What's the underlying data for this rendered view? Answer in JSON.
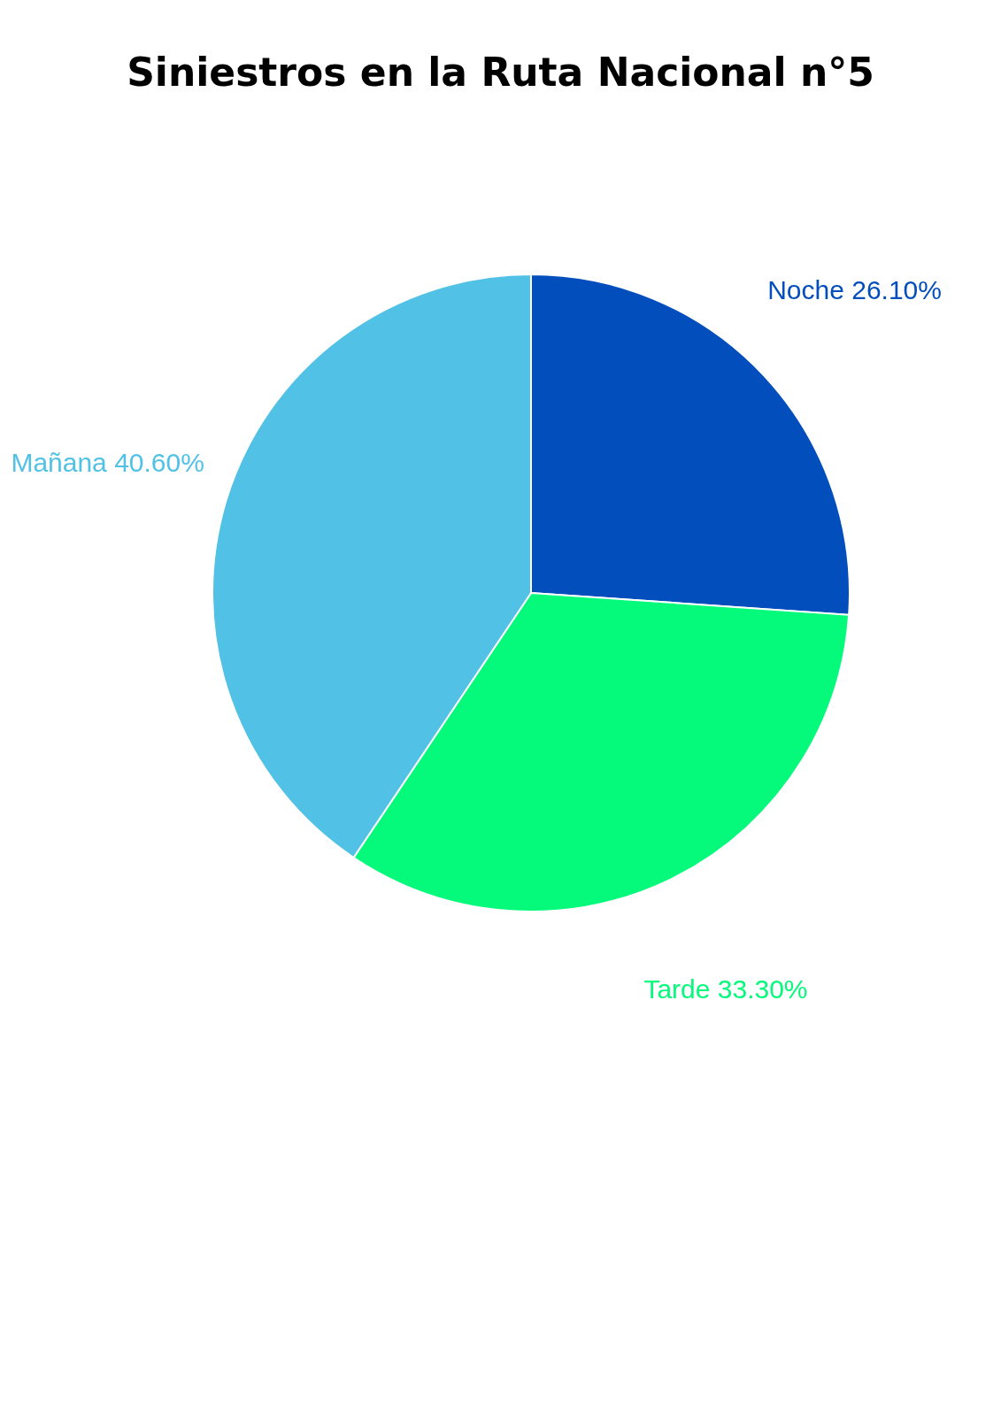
{
  "chart_data": {
    "type": "pie",
    "title": "Siniestros en la Ruta Nacional n°5",
    "categories": [
      "Noche",
      "Tarde",
      "Mañana"
    ],
    "values": [
      26.1,
      33.3,
      40.6
    ],
    "colors": [
      "#034ebd",
      "#05fa7b",
      "#52c1e6"
    ],
    "value_labels": [
      "26.10%",
      "33.30%",
      "40.60%"
    ]
  }
}
